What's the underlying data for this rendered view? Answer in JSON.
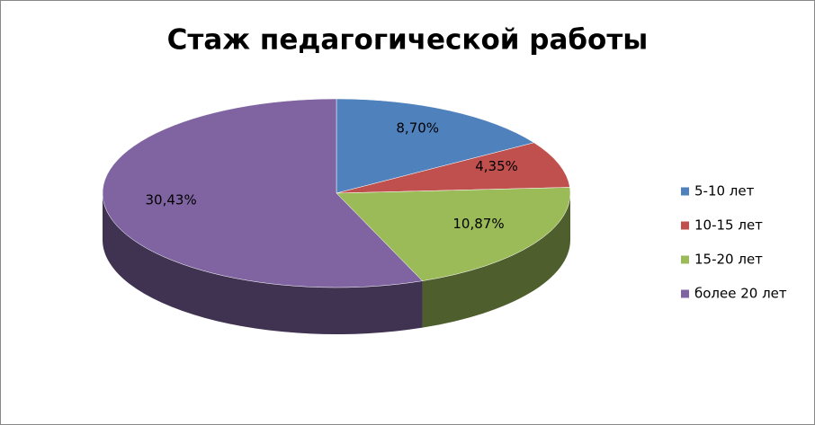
{
  "chart_data": {
    "type": "pie",
    "title": "Стаж педагогической работы",
    "categories": [
      "5-10 лет",
      "10-15 лет",
      "15-20 лет",
      "более 20 лет"
    ],
    "values": [
      8.7,
      4.35,
      10.87,
      30.43
    ],
    "value_labels": [
      "8,70%",
      "4,35%",
      "10,87%",
      "30,43%"
    ],
    "colors": [
      "#4f81bd",
      "#c0504d",
      "#9bbb59",
      "#8064a2"
    ],
    "legend": "right"
  }
}
